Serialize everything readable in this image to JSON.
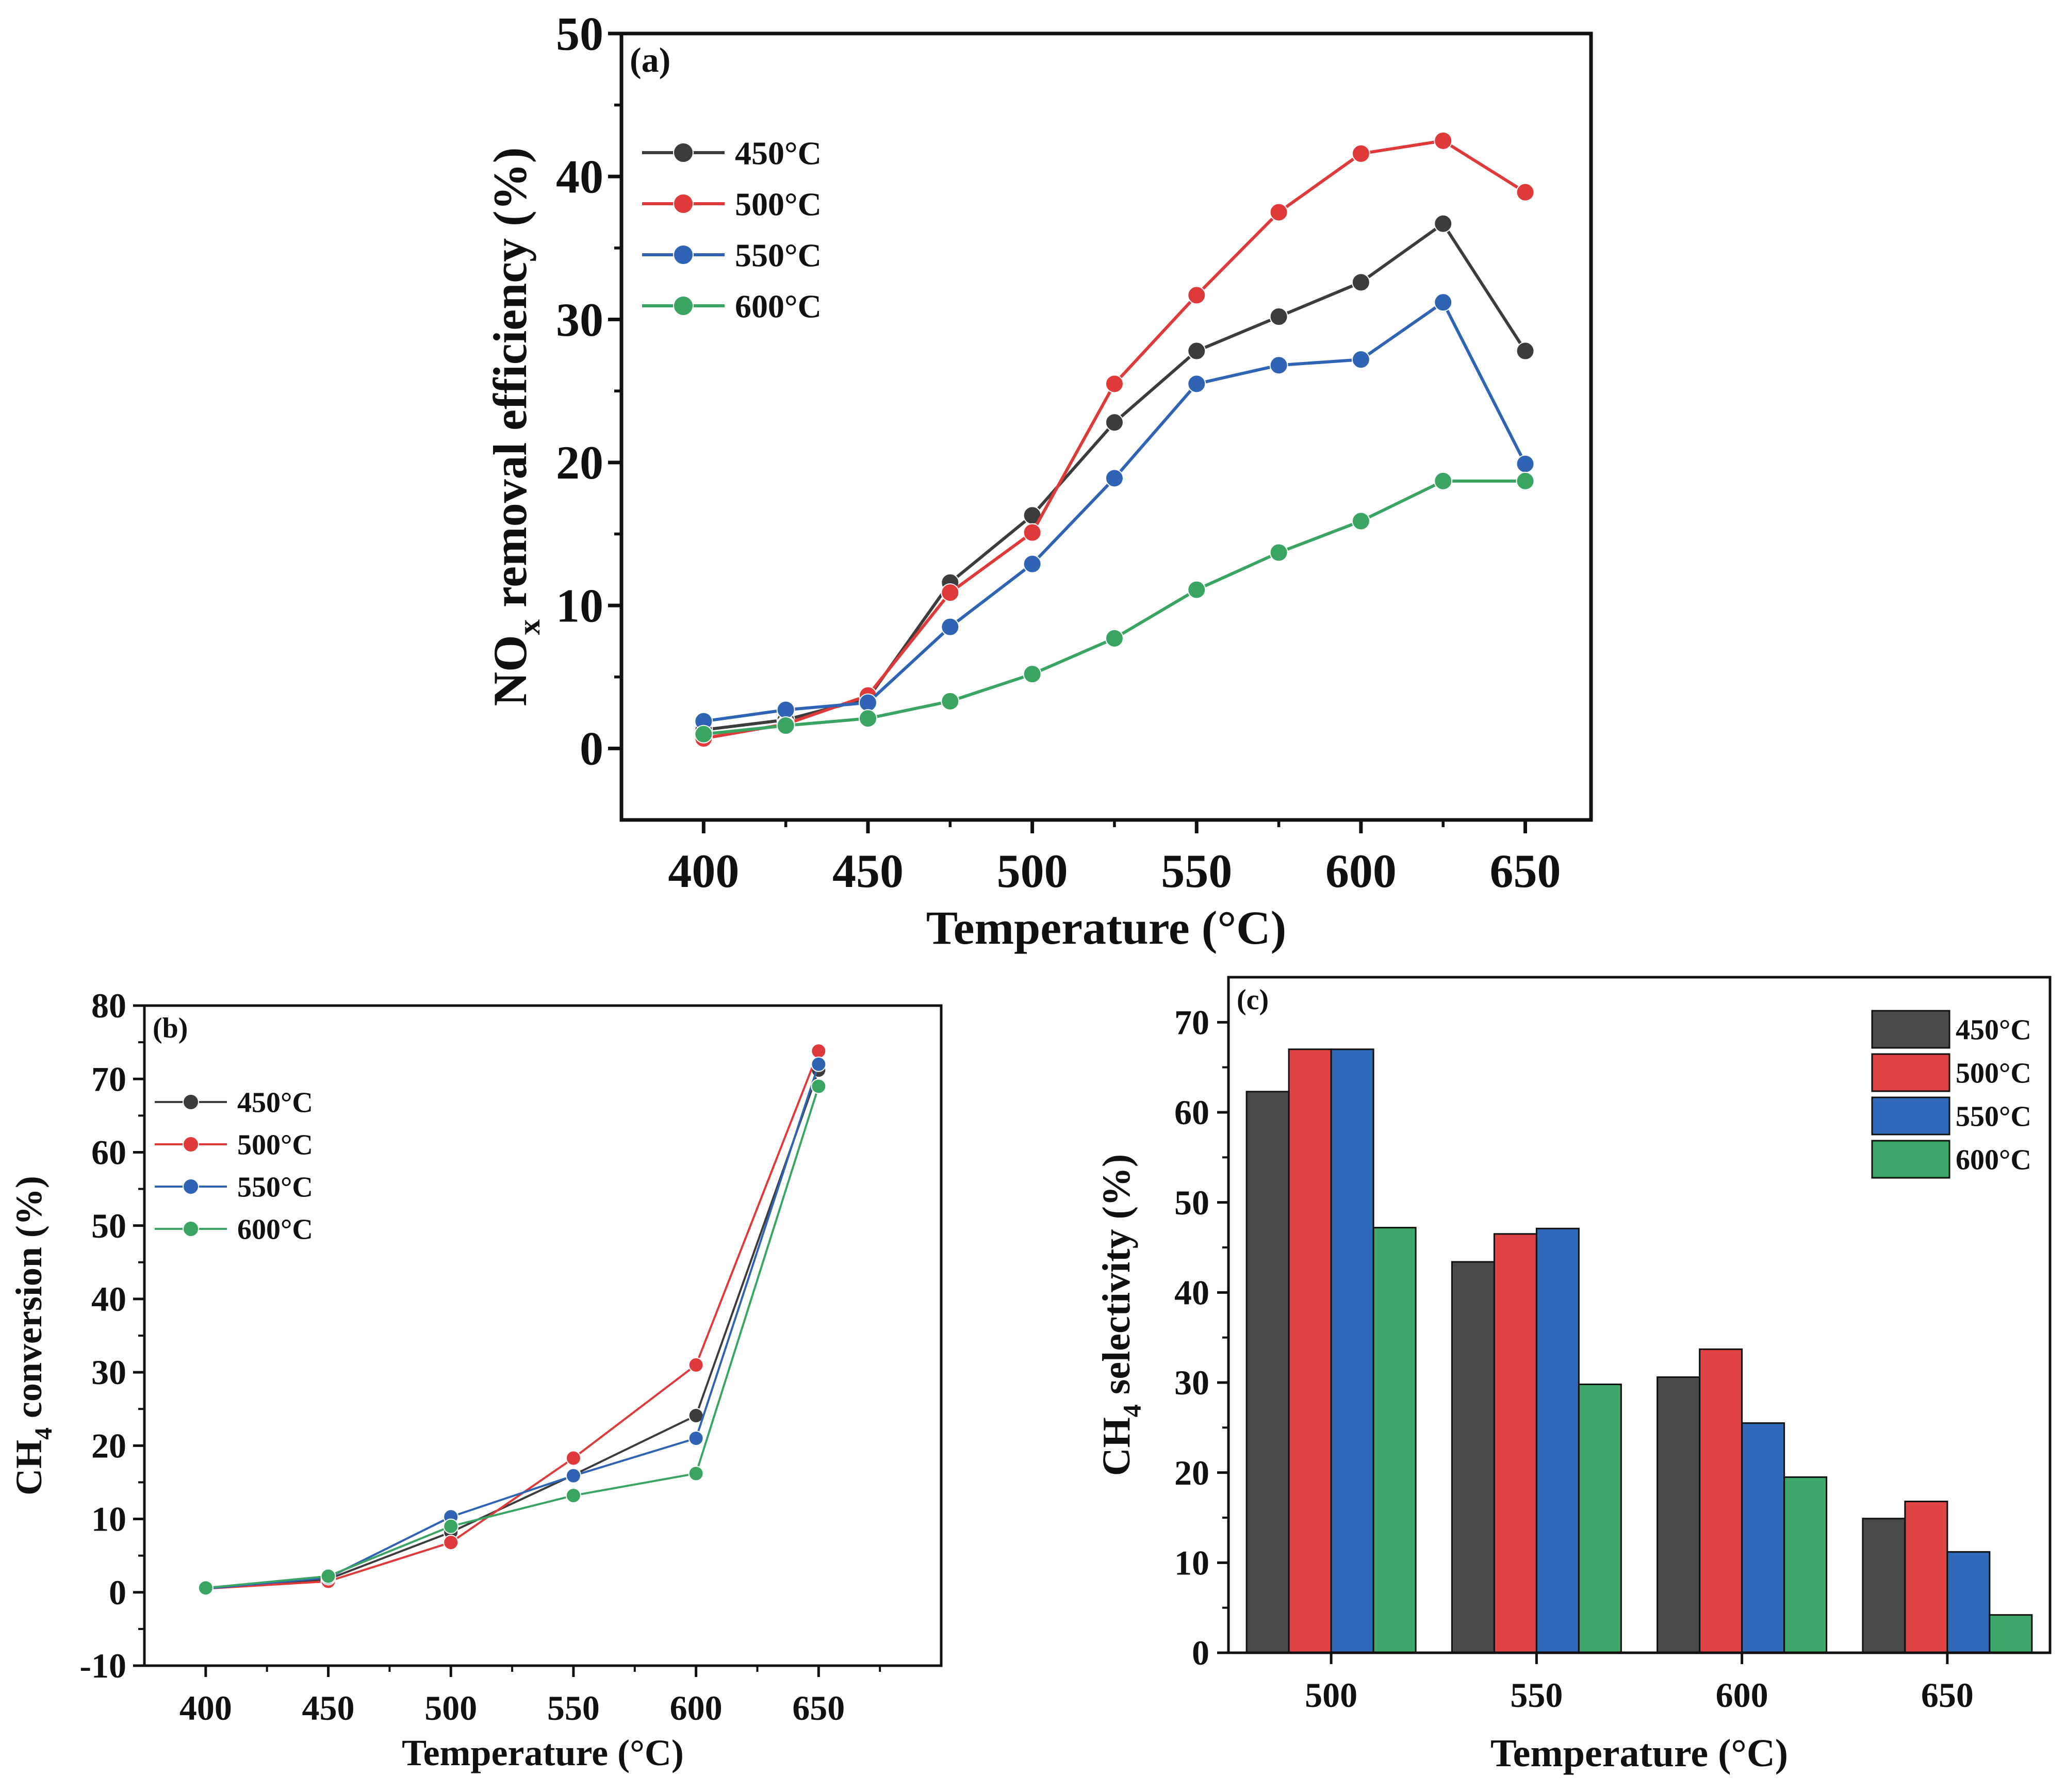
{
  "chart_data": [
    {
      "id": "a",
      "panel_label": "(a)",
      "type": "line",
      "xlabel": "Temperature (°C)",
      "ylabel_main": "NO",
      "ylabel_sub": "x",
      "ylabel_rest": " removal efficiency (%)",
      "xlim": [
        375,
        670
      ],
      "ylim": [
        -5,
        50
      ],
      "xticks": [
        400,
        450,
        500,
        550,
        600,
        650
      ],
      "xtick_labels": [
        "400",
        "450",
        "500",
        "550",
        "600",
        "650"
      ],
      "yticks": [
        0,
        10,
        20,
        30,
        40,
        50
      ],
      "ytick_labels": [
        "0",
        "10",
        "20",
        "30",
        "40",
        "50"
      ],
      "legend_position": "top-left",
      "x": [
        400,
        425,
        450,
        475,
        500,
        525,
        550,
        575,
        600,
        625,
        650
      ],
      "series": [
        {
          "name": "450°C",
          "color": "#3c3c3c",
          "values": [
            1.3,
            2.0,
            3.5,
            11.6,
            16.3,
            22.8,
            27.8,
            30.2,
            32.6,
            36.7,
            27.8
          ]
        },
        {
          "name": "500°C",
          "color": "#e0393a",
          "values": [
            0.7,
            1.7,
            3.7,
            10.9,
            15.1,
            25.5,
            31.7,
            37.5,
            41.6,
            42.5,
            38.9
          ]
        },
        {
          "name": "550°C",
          "color": "#2f64b5",
          "values": [
            1.9,
            2.7,
            3.2,
            8.5,
            12.9,
            18.9,
            25.5,
            26.8,
            27.2,
            31.2,
            19.9
          ]
        },
        {
          "name": "600°C",
          "color": "#3aa563",
          "values": [
            1.0,
            1.6,
            2.1,
            3.3,
            5.2,
            7.7,
            11.1,
            13.7,
            15.9,
            18.7,
            18.7
          ]
        }
      ]
    },
    {
      "id": "b",
      "panel_label": "(b)",
      "type": "line",
      "xlabel": "Temperature (°C)",
      "ylabel_main": "CH",
      "ylabel_sub": "4",
      "ylabel_rest": " conversion (%)",
      "xlim": [
        375,
        700
      ],
      "ylim": [
        -10,
        80
      ],
      "xticks": [
        400,
        450,
        500,
        550,
        600,
        650
      ],
      "xtick_labels": [
        "400",
        "450",
        "500",
        "550",
        "600",
        "650"
      ],
      "yticks": [
        -10,
        0,
        10,
        20,
        30,
        40,
        50,
        60,
        70,
        80
      ],
      "ytick_labels": [
        "-10",
        "0",
        "10",
        "20",
        "30",
        "40",
        "50",
        "60",
        "70",
        "80"
      ],
      "legend_position": "top-left",
      "x": [
        400,
        450,
        500,
        550,
        600,
        650
      ],
      "series": [
        {
          "name": "450°C",
          "color": "#3c3c3c",
          "values": [
            0.5,
            1.8,
            8.2,
            16.0,
            24.1,
            71.2
          ]
        },
        {
          "name": "500°C",
          "color": "#e0393a",
          "values": [
            0.5,
            1.5,
            6.8,
            18.3,
            31.0,
            73.8
          ]
        },
        {
          "name": "550°C",
          "color": "#2f64b5",
          "values": [
            0.5,
            2.0,
            10.3,
            15.9,
            21.0,
            72.0
          ]
        },
        {
          "name": "600°C",
          "color": "#3aa563",
          "values": [
            0.6,
            2.2,
            9.0,
            13.2,
            16.2,
            69.0
          ]
        }
      ]
    },
    {
      "id": "c",
      "panel_label": "(c)",
      "type": "bar",
      "xlabel": "Temperature (°C)",
      "ylabel_main": "CH",
      "ylabel_sub": "4",
      "ylabel_rest": " selectivity (%)",
      "ylim": [
        0,
        75
      ],
      "yticks": [
        0,
        10,
        20,
        30,
        40,
        50,
        60,
        70
      ],
      "ytick_labels": [
        "0",
        "10",
        "20",
        "30",
        "40",
        "50",
        "60",
        "70"
      ],
      "categories": [
        "500",
        "550",
        "600",
        "650"
      ],
      "legend_position": "top-right",
      "series": [
        {
          "name": "450°C",
          "color": "#4a4a4c",
          "values": [
            62.3,
            43.4,
            30.6,
            14.9
          ]
        },
        {
          "name": "500°C",
          "color": "#e04343",
          "values": [
            67.0,
            46.5,
            33.7,
            16.8
          ]
        },
        {
          "name": "550°C",
          "color": "#2f69b8",
          "values": [
            67.0,
            47.1,
            25.5,
            11.2
          ]
        },
        {
          "name": "600°C",
          "color": "#3ea86a",
          "values": [
            47.2,
            29.8,
            19.5,
            4.2
          ]
        }
      ]
    }
  ]
}
